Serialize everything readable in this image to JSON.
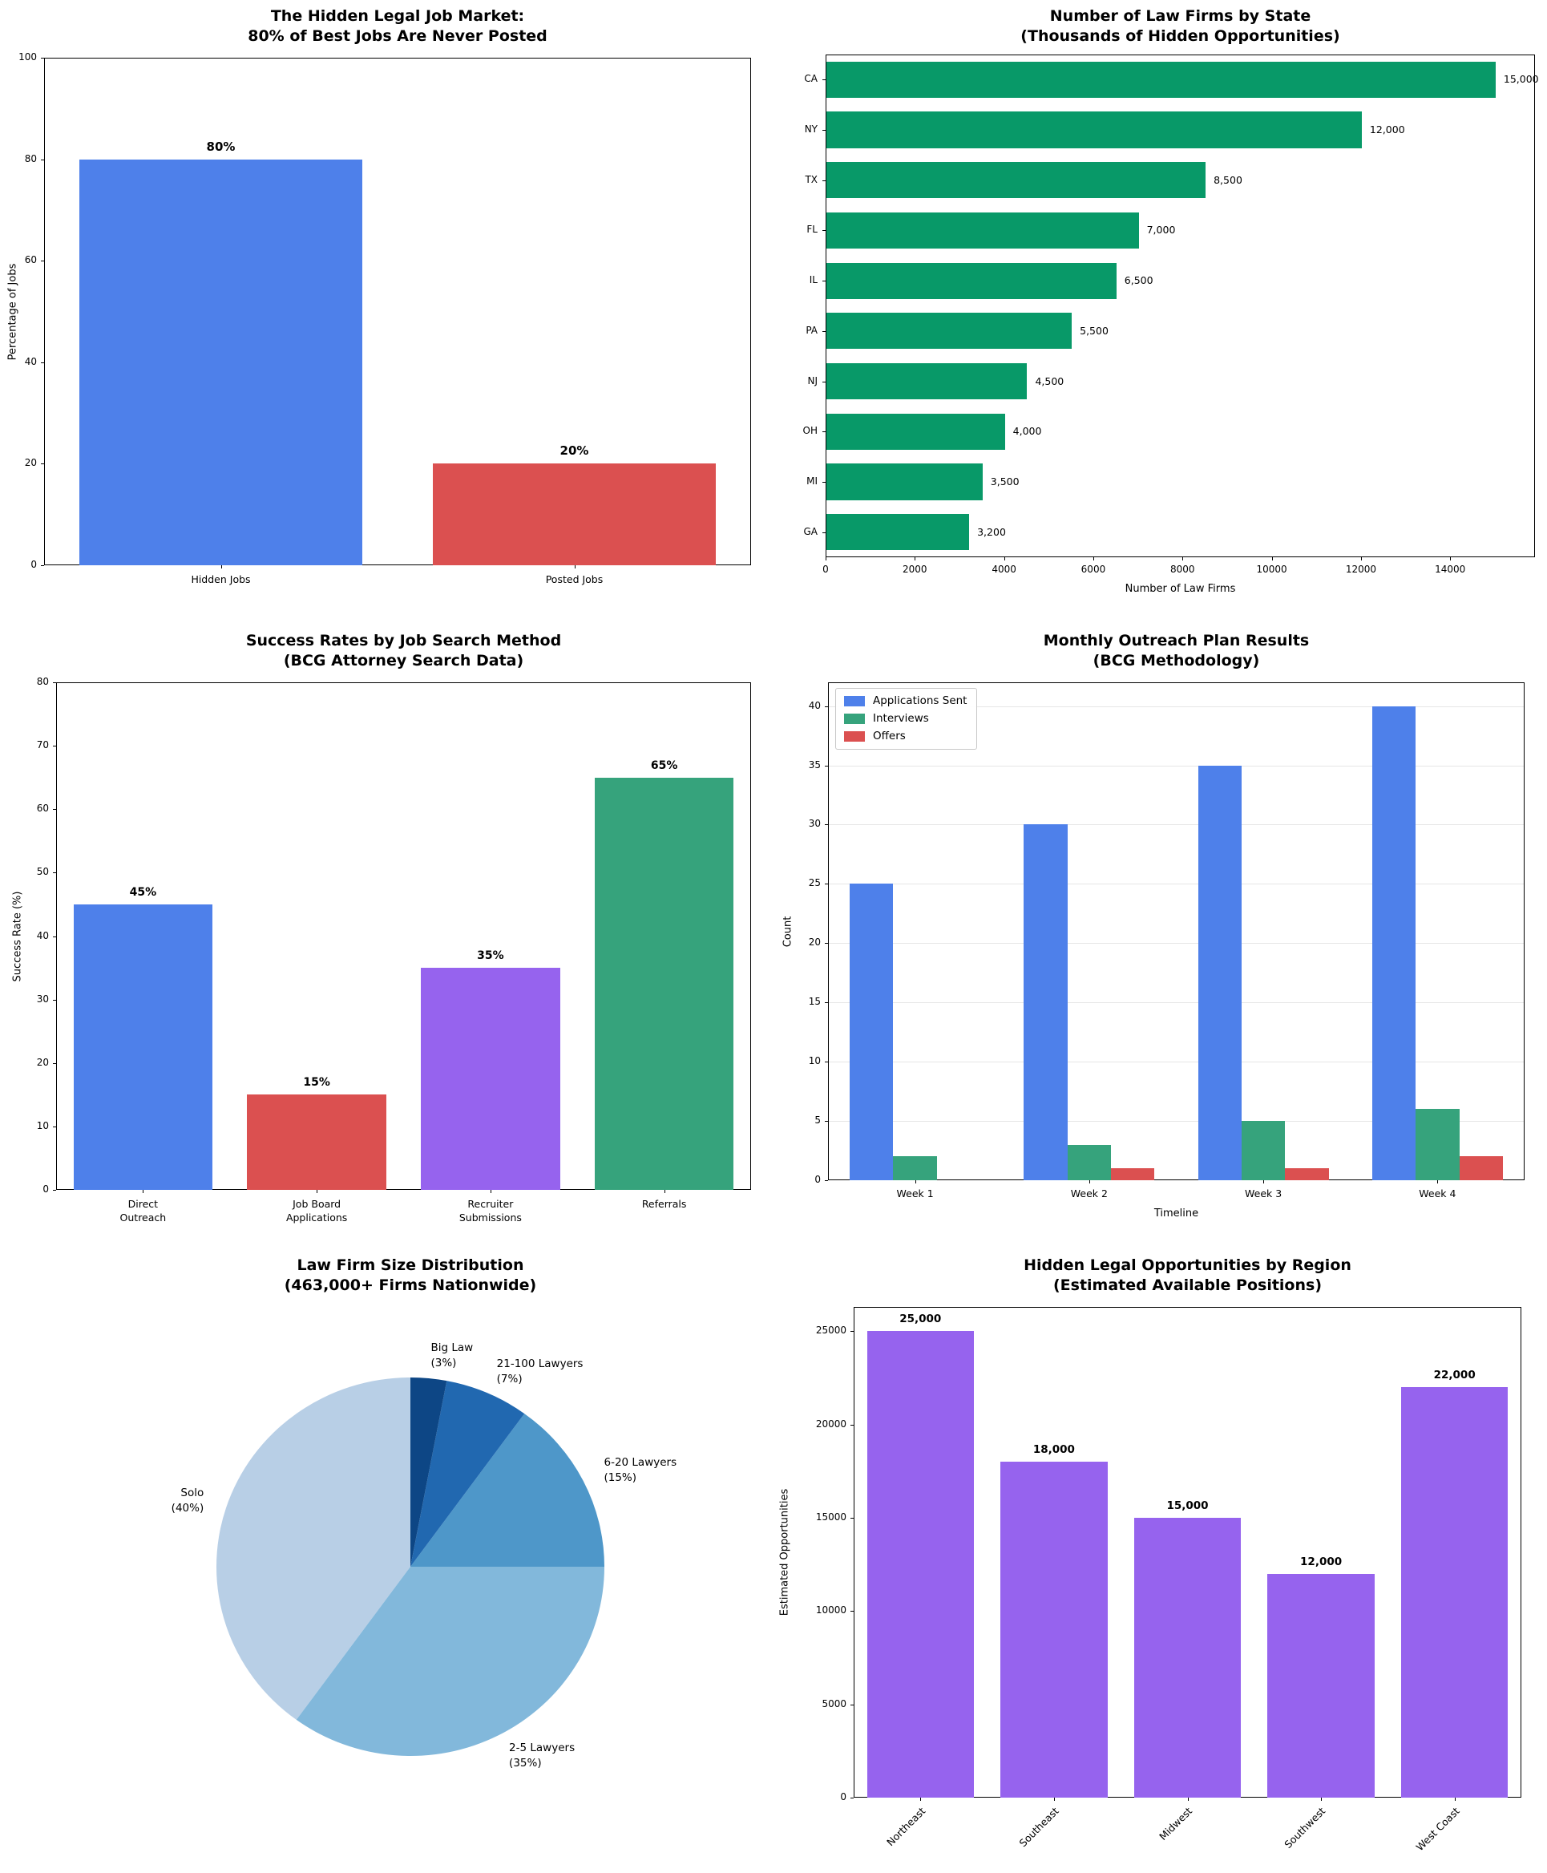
{
  "figure": {
    "background": "#ffffff",
    "text_color": "#000000",
    "grid_color": "#e6e6e6"
  },
  "chart_data": [
    {
      "id": "hidden-market",
      "type": "bar",
      "title": "The Hidden Legal Job Market:\n80% of Best Jobs Are Never Posted",
      "ylabel": "Percentage of Jobs",
      "categories": [
        "Hidden Jobs",
        "Posted Jobs"
      ],
      "values": [
        80,
        20
      ],
      "value_labels": [
        "80%",
        "20%"
      ],
      "colors": [
        "#4E80EA",
        "#DB5050"
      ],
      "ylim": [
        0,
        100
      ],
      "yticks": [
        0,
        20,
        40,
        60,
        80,
        100
      ],
      "grid": false
    },
    {
      "id": "firms-by-state",
      "type": "barh",
      "title": "Number of Law Firms by State\n(Thousands of Hidden Opportunities)",
      "xlabel": "Number of Law Firms",
      "categories": [
        "CA",
        "NY",
        "TX",
        "FL",
        "IL",
        "PA",
        "NJ",
        "OH",
        "MI",
        "GA"
      ],
      "values": [
        15000,
        12000,
        8500,
        7000,
        6500,
        5500,
        4500,
        4000,
        3500,
        3200
      ],
      "value_labels": [
        "15,000",
        "12,000",
        "8,500",
        "7,000",
        "6,500",
        "5,500",
        "4,500",
        "4,000",
        "3,500",
        "3,200"
      ],
      "color": "#089968",
      "xlim": [
        0,
        15900
      ],
      "xticks": [
        0,
        2000,
        4000,
        6000,
        8000,
        10000,
        12000,
        14000
      ],
      "grid": false
    },
    {
      "id": "success-rates",
      "type": "bar",
      "title": "Success Rates by Job Search Method\n(BCG Attorney Search Data)",
      "ylabel": "Success Rate (%)",
      "categories": [
        "Direct\nOutreach",
        "Job Board\nApplications",
        "Recruiter\nSubmissions",
        "Referrals"
      ],
      "values": [
        45,
        15,
        35,
        65
      ],
      "value_labels": [
        "45%",
        "15%",
        "35%",
        "65%"
      ],
      "colors": [
        "#4E80EA",
        "#DB5050",
        "#9663EE",
        "#36A37C"
      ],
      "ylim": [
        0,
        80
      ],
      "yticks": [
        0,
        10,
        20,
        30,
        40,
        50,
        60,
        70,
        80
      ],
      "grid": false
    },
    {
      "id": "outreach-results",
      "type": "grouped_bar",
      "title": "Monthly Outreach Plan Results\n(BCG Methodology)",
      "xlabel": "Timeline",
      "ylabel": "Count",
      "categories": [
        "Week 1",
        "Week 2",
        "Week 3",
        "Week 4"
      ],
      "series": [
        {
          "name": "Applications Sent",
          "color": "#4E80EA",
          "values": [
            25,
            30,
            35,
            40
          ]
        },
        {
          "name": "Interviews",
          "color": "#36A37C",
          "values": [
            2,
            3,
            5,
            6
          ]
        },
        {
          "name": "Offers",
          "color": "#DB5050",
          "values": [
            0,
            1,
            1,
            2
          ]
        }
      ],
      "ylim": [
        0,
        42
      ],
      "yticks": [
        0,
        5,
        10,
        15,
        20,
        25,
        30,
        35,
        40
      ],
      "grid": true,
      "legend_position": "upper left"
    },
    {
      "id": "firm-size-pie",
      "type": "pie",
      "title": "Law Firm Size Distribution\n(463,000+ Firms Nationwide)",
      "startangle": 90,
      "direction": "counterclockwise",
      "slices": [
        {
          "label": "Solo",
          "pct": 40,
          "display": "Solo\n(40%)",
          "color": "#B8CFE6"
        },
        {
          "label": "2-5 Lawyers",
          "pct": 35,
          "display": "2-5 Lawyers\n(35%)",
          "color": "#82B8DB"
        },
        {
          "label": "6-20 Lawyers",
          "pct": 15,
          "display": "6-20 Lawyers\n(15%)",
          "color": "#4E97C9"
        },
        {
          "label": "21-100 Lawyers",
          "pct": 7,
          "display": "21-100 Lawyers\n(7%)",
          "color": "#2168B0"
        },
        {
          "label": "Big Law",
          "pct": 3,
          "display": "Big Law\n(3%)",
          "color": "#0D4685"
        }
      ]
    },
    {
      "id": "opportunities-by-region",
      "type": "bar",
      "title": "Hidden Legal Opportunities by Region\n(Estimated Available Positions)",
      "ylabel": "Estimated Opportunities",
      "categories": [
        "Northeast",
        "Southeast",
        "Midwest",
        "Southwest",
        "West Coast"
      ],
      "values": [
        25000,
        18000,
        15000,
        12000,
        22000
      ],
      "value_labels": [
        "25,000",
        "18,000",
        "15,000",
        "12,000",
        "22,000"
      ],
      "colors": [
        "#9663EE",
        "#9663EE",
        "#9663EE",
        "#9663EE",
        "#9663EE"
      ],
      "ylim": [
        0,
        26300
      ],
      "yticks": [
        0,
        5000,
        10000,
        15000,
        20000,
        25000
      ],
      "xtick_rotation": 45,
      "grid": false
    }
  ]
}
